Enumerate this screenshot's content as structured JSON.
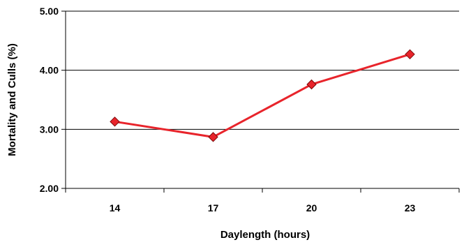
{
  "chart_data": {
    "type": "line",
    "title": "",
    "xlabel": "Daylength (hours)",
    "ylabel": "Mortality and Culls (%)",
    "categories": [
      "14",
      "17",
      "20",
      "23"
    ],
    "ylim": [
      2.0,
      5.0
    ],
    "yticks": [
      "2.00",
      "3.00",
      "4.00",
      "5.00"
    ],
    "grid": true,
    "legend": "none",
    "series": [
      {
        "values": [
          3.13,
          2.87,
          3.76,
          4.27
        ],
        "line_color": "#e8242b",
        "marker": "diamond",
        "marker_fill": "#e8242b",
        "marker_edge": "#7a0a0a"
      }
    ]
  }
}
